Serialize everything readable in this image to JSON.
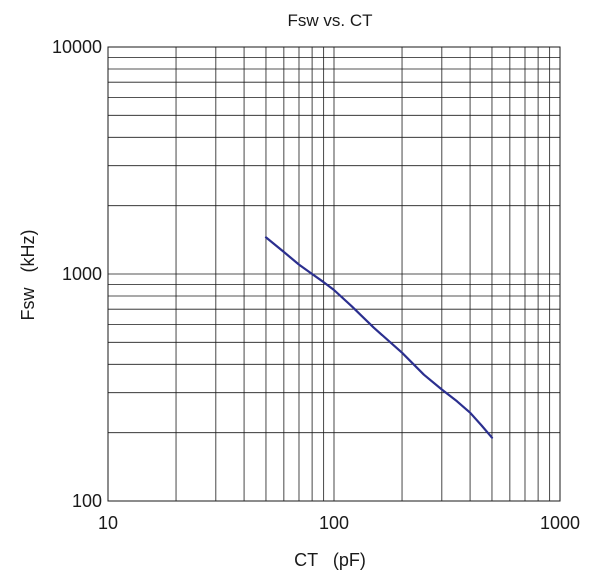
{
  "chart_data": {
    "type": "line",
    "title": "Fsw vs. CT",
    "xlabel": "CT   (pF)",
    "ylabel": "Fsw   (kHz)",
    "x_scale": "log",
    "y_scale": "log",
    "xlim": [
      10,
      1000
    ],
    "ylim": [
      100,
      10000
    ],
    "grid": true,
    "x_ticks": [
      "10",
      "100",
      "1000"
    ],
    "y_ticks": [
      "100",
      "1000",
      "10000"
    ],
    "series": [
      {
        "color": "#2b2f8f",
        "x": [
          50,
          60,
          70,
          80,
          90,
          100,
          120,
          150,
          200,
          250,
          300,
          350,
          400,
          450,
          500
        ],
        "y": [
          1450,
          1250,
          1100,
          1000,
          920,
          850,
          720,
          580,
          450,
          360,
          310,
          275,
          245,
          215,
          190
        ]
      }
    ]
  }
}
